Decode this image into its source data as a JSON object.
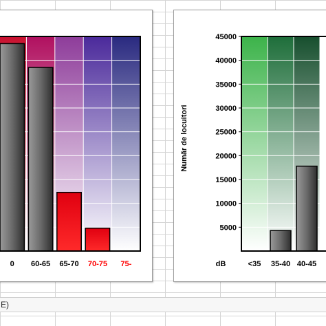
{
  "status_bar": {
    "text": "E)"
  },
  "colors": {
    "highlight_label": "#ff0000",
    "normal_label": "#000000"
  },
  "chart_data": [
    {
      "type": "bar",
      "categories": [
        "0",
        "60-65",
        "65-70",
        "70-75",
        "75-"
      ],
      "values": [
        43500,
        38500,
        12300,
        4800,
        0
      ],
      "highlighted_categories": [
        "70-75",
        "75-"
      ],
      "ylim": [
        0,
        45000
      ],
      "bar_fills": [
        "gray",
        "gray",
        "red",
        "red",
        "none"
      ],
      "background_columns": [
        "#c8102e",
        "#b0105f",
        "#8e3c9a",
        "#4b2a9b",
        "#2a2a80"
      ]
    },
    {
      "type": "bar",
      "categories": [
        "<35",
        "35-40",
        "40-45"
      ],
      "x_axis_unit": "dB",
      "values": [
        0,
        4300,
        17800
      ],
      "ylabel": "Număr de locuitori",
      "yticks": [
        5000,
        10000,
        15000,
        20000,
        25000,
        30000,
        35000,
        40000,
        45000
      ],
      "ylim": [
        0,
        45000
      ],
      "background_columns": [
        "#3cb34a",
        "#1e6e3a",
        "#174f2e"
      ]
    }
  ]
}
